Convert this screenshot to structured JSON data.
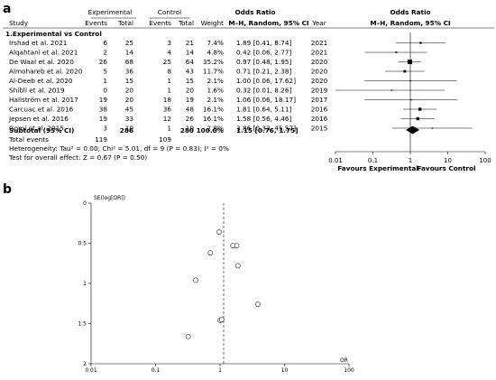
{
  "chart_data": [
    {
      "type": "table",
      "panel_label": "a",
      "headers": {
        "study": "Study",
        "experimental": "Experimental",
        "control": "Control",
        "events": "Events",
        "total": "Total",
        "weight": "Weight",
        "odds_ratio": "Odds Ratio",
        "method": "M–H, Random, 95% CI",
        "year": "Year"
      },
      "subgroup": "1.Experimental vs Control",
      "studies": [
        {
          "study": "Irshad et al. 2021",
          "exp_events": "6",
          "exp_total": "25",
          "ctl_events": "3",
          "ctl_total": "21",
          "weight": "7.4%",
          "or_text": "1.89 [0.41, 8.74]",
          "year": "2021",
          "or": 1.89,
          "lo": 0.41,
          "hi": 8.74
        },
        {
          "study": "Alqahtani et al. 2021",
          "exp_events": "2",
          "exp_total": "14",
          "ctl_events": "4",
          "ctl_total": "14",
          "weight": "4.8%",
          "or_text": "0.42 [0.06, 2.77]",
          "year": "2021",
          "or": 0.42,
          "lo": 0.06,
          "hi": 2.77
        },
        {
          "study": "De Waal et al. 2020",
          "exp_events": "26",
          "exp_total": "68",
          "ctl_events": "25",
          "ctl_total": "64",
          "weight": "35.2%",
          "or_text": "0.97 [0.48, 1.95]",
          "year": "2020",
          "or": 0.97,
          "lo": 0.48,
          "hi": 1.95
        },
        {
          "study": "Almohareb et al. 2020",
          "exp_events": "5",
          "exp_total": "36",
          "ctl_events": "8",
          "ctl_total": "43",
          "weight": "11.7%",
          "or_text": "0.71 [0.21, 2.38]",
          "year": "2020",
          "or": 0.71,
          "lo": 0.21,
          "hi": 2.38
        },
        {
          "study": "Al-Deeb et al. 2020",
          "exp_events": "1",
          "exp_total": "15",
          "ctl_events": "1",
          "ctl_total": "15",
          "weight": "2.1%",
          "or_text": "1.00 [0.06, 17.62]",
          "year": "2020",
          "or": 1.0,
          "lo": 0.06,
          "hi": 17.62
        },
        {
          "study": "Shibli et al. 2019",
          "exp_events": "0",
          "exp_total": "20",
          "ctl_events": "1",
          "ctl_total": "20",
          "weight": "1.6%",
          "or_text": "0.32 [0.01, 8.26]",
          "year": "2019",
          "or": 0.32,
          "lo": 0.01,
          "hi": 8.26
        },
        {
          "study": "Hallström et al. 2017",
          "exp_events": "19",
          "exp_total": "20",
          "ctl_events": "18",
          "ctl_total": "19",
          "weight": "2.1%",
          "or_text": "1.06 [0.06, 18.17]",
          "year": "2017",
          "or": 1.06,
          "lo": 0.06,
          "hi": 18.17
        },
        {
          "study": "Carcuac et al. 2016",
          "exp_events": "38",
          "exp_total": "45",
          "ctl_events": "36",
          "ctl_total": "48",
          "weight": "16.1%",
          "or_text": "1.81 [0.64, 5.11]",
          "year": "2016",
          "or": 1.81,
          "lo": 0.64,
          "hi": 5.11
        },
        {
          "study": "Jepsen et al. 2016",
          "exp_events": "19",
          "exp_total": "33",
          "ctl_events": "12",
          "ctl_total": "26",
          "weight": "16.1%",
          "or_text": "1.58 [0.56, 4.46]",
          "year": "2016",
          "or": 1.58,
          "lo": 0.56,
          "hi": 4.46
        },
        {
          "study": "Gomi et al. 2015",
          "exp_events": "3",
          "exp_total": "10",
          "ctl_events": "1",
          "ctl_total": "10",
          "weight": "2.8%",
          "or_text": "3.86 [0.33, 45.57]",
          "year": "2015",
          "or": 3.86,
          "lo": 0.33,
          "hi": 45.57
        }
      ],
      "subtotal": {
        "label": "Subtotal (95% CI)",
        "exp_total": "286",
        "ctl_total": "280",
        "weight": "100.0%",
        "or_text": "1.15 [0.76, 1.75]",
        "or": 1.15,
        "lo": 0.76,
        "hi": 1.75
      },
      "total_events": {
        "label": "Total events",
        "exp": "119",
        "ctl": "109"
      },
      "heterogeneity": "Heterogeneity: Tau² = 0.00; Chi² = 5.01, df = 9 (P = 0.83); I² = 0%",
      "overall_effect": "Test for overall effect: Z = 0.67 (P = 0.50)",
      "plot_axis": {
        "scale": "log",
        "ticks": [
          "0.01",
          "0.1",
          "1",
          "10",
          "100"
        ],
        "tick_values": [
          0.01,
          0.1,
          1,
          10,
          100
        ]
      },
      "favours_left": "Favours Experimental",
      "favours_right": "Favours Control"
    },
    {
      "type": "scatter",
      "panel_label": "b",
      "ylabel": "SE(log[OR])",
      "xlabel": "OR",
      "x_scale": "log",
      "x_ticks": [
        "0.01",
        "0.1",
        "1",
        "10",
        "100"
      ],
      "x_tick_values": [
        0.01,
        0.1,
        1,
        10,
        100
      ],
      "y_ticks": [
        "0",
        "0.5",
        "1",
        "1.5",
        "2"
      ],
      "y_tick_values": [
        0,
        0.5,
        1,
        1.5,
        2
      ],
      "y_reversed": true,
      "pooled_or": 1.15,
      "points": [
        {
          "x": 0.97,
          "y": 0.36
        },
        {
          "x": 1.81,
          "y": 0.53
        },
        {
          "x": 1.58,
          "y": 0.53
        },
        {
          "x": 0.71,
          "y": 0.62
        },
        {
          "x": 1.89,
          "y": 0.78
        },
        {
          "x": 0.42,
          "y": 0.96
        },
        {
          "x": 3.86,
          "y": 1.26
        },
        {
          "x": 1.0,
          "y": 1.46
        },
        {
          "x": 1.06,
          "y": 1.45
        },
        {
          "x": 0.32,
          "y": 1.66
        }
      ]
    }
  ]
}
